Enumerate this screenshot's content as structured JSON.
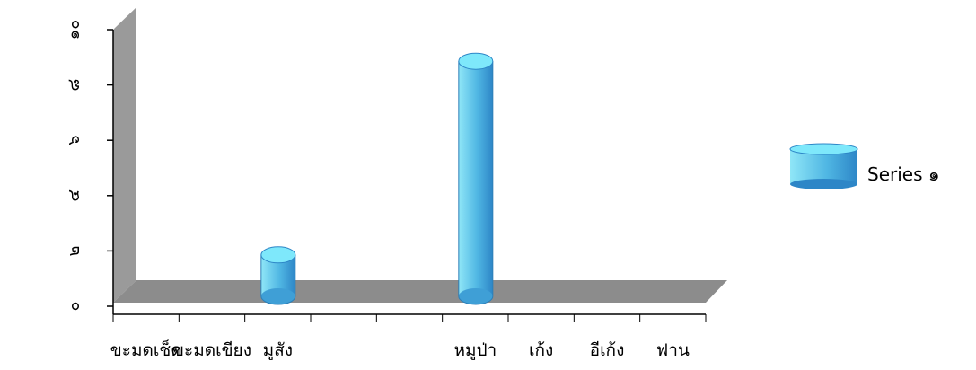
{
  "chart_data": {
    "type": "bar",
    "style": "3d-cylinder",
    "categories": [
      "ขะมดเช็ด",
      "ขะมดเขียง",
      "มูสัง",
      "",
      "",
      "หมูป่า",
      "เก้ง",
      "อีเก้ง",
      "ฟาน"
    ],
    "series": [
      {
        "name": "Series ๑",
        "values": [
          0,
          0,
          1.5,
          0,
          0,
          8.5,
          0,
          0,
          0
        ]
      }
    ],
    "ylim": [
      0,
      10
    ],
    "yticks": [
      0,
      2,
      4,
      6,
      8,
      10
    ],
    "ytick_labels": [
      "๐",
      "๒",
      "๔",
      "๖",
      "๘",
      "๑๐"
    ],
    "grid": false,
    "legend_position": "right",
    "colors": {
      "bar_light": "#8fe6f7",
      "bar_mid": "#4fb6e3",
      "bar_dark": "#2d86c7",
      "bar_top": "#7ee8fb",
      "wall": "#9a9a9a",
      "floor": "#8c8c8c",
      "axis": "#000000"
    }
  }
}
